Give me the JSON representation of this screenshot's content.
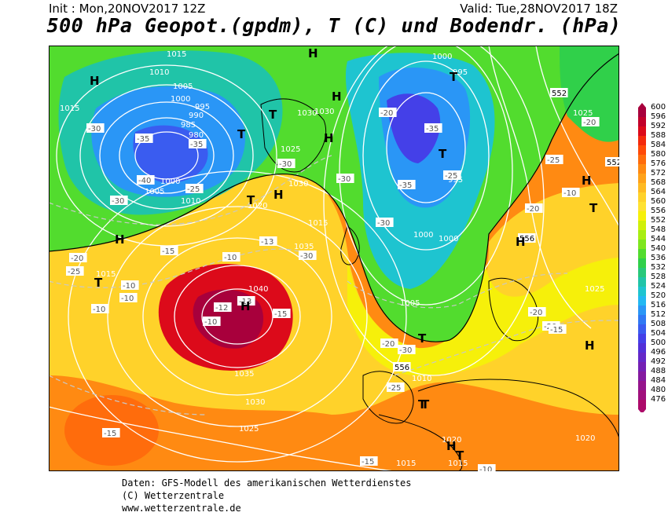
{
  "header": {
    "init": "Init : Mon,20NOV2017 12Z",
    "valid": "Valid: Tue,28NOV2017 18Z",
    "title": "500 hPa Geopot.(gpdm), T (C) und Bodendr. (hPa)"
  },
  "legend": {
    "levels": [
      "600",
      "596",
      "592",
      "588",
      "584",
      "580",
      "576",
      "572",
      "568",
      "564",
      "560",
      "556",
      "552",
      "548",
      "544",
      "540",
      "536",
      "532",
      "528",
      "524",
      "520",
      "516",
      "512",
      "508",
      "504",
      "500",
      "496",
      "492",
      "488",
      "484",
      "480",
      "476"
    ],
    "colors": [
      "#a8003c",
      "#c2002a",
      "#dc0a1a",
      "#f42a0c",
      "#ff4a08",
      "#ff6c0c",
      "#ff8a12",
      "#ffa21a",
      "#ffba22",
      "#ffd22a",
      "#ffe232",
      "#f6f00a",
      "#d0f00a",
      "#a8ee12",
      "#7ee61e",
      "#52dc2e",
      "#30d04a",
      "#28c87a",
      "#20c4a8",
      "#1ec4d0",
      "#22b8f2",
      "#2a96f6",
      "#3078f4",
      "#3a5cf0",
      "#4440e8",
      "#5230d8",
      "#6428c8",
      "#7420b4",
      "#841aa0",
      "#94148c",
      "#a0107c",
      "#ac0a6a"
    ]
  },
  "map": {
    "pressure_labels": [
      "1015",
      "1010",
      "1005",
      "1000",
      "995",
      "990",
      "985",
      "980",
      "1000",
      "1005",
      "1010",
      "1015",
      "1015",
      "1030",
      "1025",
      "1030",
      "1030",
      "1020",
      "1015",
      "1035",
      "1040",
      "1035",
      "1030",
      "1025",
      "1000",
      "995",
      "1000",
      "1000",
      "995",
      "1005",
      "1010",
      "1015",
      "1015",
      "1020",
      "1025",
      "1025",
      "1020"
    ],
    "temp_labels": [
      "-30",
      "-35",
      "-35",
      "-40",
      "-25",
      "-30",
      "-30",
      "-30",
      "-20",
      "-30",
      "-35",
      "-35",
      "-25",
      "-15",
      "-10",
      "-13",
      "-30",
      "-13",
      "-12",
      "-10",
      "-15",
      "-10",
      "-10",
      "-10",
      "-20",
      "-30",
      "-25",
      "-20",
      "-20",
      "-15",
      "-10",
      "-15",
      "-20",
      "-25",
      "-25",
      "-20",
      "-10",
      "-20",
      "-15"
    ],
    "highs": [
      "H",
      "H",
      "H",
      "H",
      "H",
      "H",
      "H",
      "H",
      "H",
      "H",
      "H"
    ],
    "lows": [
      "T",
      "T",
      "T",
      "T",
      "T",
      "T",
      "T",
      "T",
      "T",
      "T",
      "T"
    ],
    "geopot_labels": [
      "552",
      "552",
      "556",
      "556"
    ]
  },
  "footer": {
    "line1": "Daten: GFS-Modell des amerikanischen Wetterdienstes",
    "line2": "(C) Wetterzentrale",
    "line3": "www.wetterzentrale.de"
  }
}
